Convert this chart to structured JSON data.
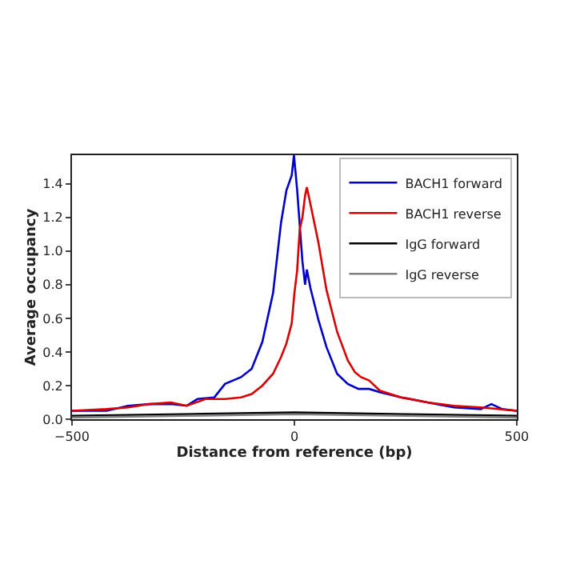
{
  "chart_data": {
    "type": "line",
    "xlabel": "Distance from reference (bp)",
    "ylabel": "Average occupancy",
    "xlim": [
      -500,
      500
    ],
    "ylim": [
      0,
      1.57
    ],
    "xticks": [
      {
        "value": -500,
        "label": "−500"
      },
      0,
      500
    ],
    "yticks": [
      {
        "value": 0,
        "label": "0.0"
      },
      {
        "value": 0.2,
        "label": "0.2"
      },
      {
        "value": 0.4,
        "label": "0.4"
      },
      {
        "value": 0.6,
        "label": "0.6"
      },
      {
        "value": 0.8,
        "label": "0.8"
      },
      {
        "value": 1,
        "label": "1.0"
      },
      {
        "value": 1.2,
        "label": "1.2"
      },
      {
        "value": 1.4,
        "label": "1.4"
      }
    ],
    "grid": false,
    "legend": "top right",
    "marker": "none",
    "line_style": "solid",
    "series": [
      {
        "name": "BACH1 forward",
        "color": "#0000cc",
        "x": [
          -500,
          -422,
          -374,
          -326,
          -278,
          -242,
          -218,
          -180,
          -156,
          -120,
          -96,
          -72,
          -48,
          -30,
          -18,
          -6,
          -1,
          6,
          18,
          24,
          28,
          36,
          54,
          72,
          96,
          120,
          144,
          168,
          192,
          240,
          299,
          359,
          419,
          443,
          467,
          500
        ],
        "values": [
          0.05,
          0.05,
          0.08,
          0.09,
          0.09,
          0.08,
          0.12,
          0.13,
          0.21,
          0.25,
          0.3,
          0.46,
          0.75,
          1.17,
          1.36,
          1.45,
          1.57,
          1.37,
          0.94,
          0.8,
          0.89,
          0.78,
          0.59,
          0.43,
          0.27,
          0.21,
          0.18,
          0.18,
          0.16,
          0.13,
          0.1,
          0.07,
          0.06,
          0.09,
          0.06,
          0.05
        ]
      },
      {
        "name": "BACH1 reverse",
        "color": "#dd0000",
        "x": [
          -500,
          -422,
          -374,
          -326,
          -278,
          -242,
          -200,
          -156,
          -120,
          -96,
          -72,
          -48,
          -30,
          -18,
          -6,
          0,
          6,
          12,
          18,
          24,
          28,
          36,
          54,
          72,
          96,
          120,
          136,
          150,
          168,
          192,
          240,
          299,
          359,
          419,
          500
        ],
        "values": [
          0.05,
          0.06,
          0.07,
          0.09,
          0.1,
          0.08,
          0.12,
          0.12,
          0.13,
          0.15,
          0.2,
          0.27,
          0.37,
          0.45,
          0.57,
          0.75,
          0.88,
          1.13,
          1.2,
          1.33,
          1.38,
          1.28,
          1.05,
          0.77,
          0.52,
          0.35,
          0.28,
          0.25,
          0.23,
          0.17,
          0.13,
          0.1,
          0.08,
          0.07,
          0.05
        ]
      },
      {
        "name": "IgG forward",
        "color": "#000000",
        "x": [
          -500,
          -250,
          0,
          250,
          500
        ],
        "values": [
          0.02,
          0.03,
          0.04,
          0.03,
          0.02
        ]
      },
      {
        "name": "IgG reverse",
        "color": "#808080",
        "x": [
          -500,
          -250,
          0,
          250,
          500
        ],
        "values": [
          0.01,
          0.02,
          0.03,
          0.02,
          0.01
        ]
      }
    ]
  }
}
